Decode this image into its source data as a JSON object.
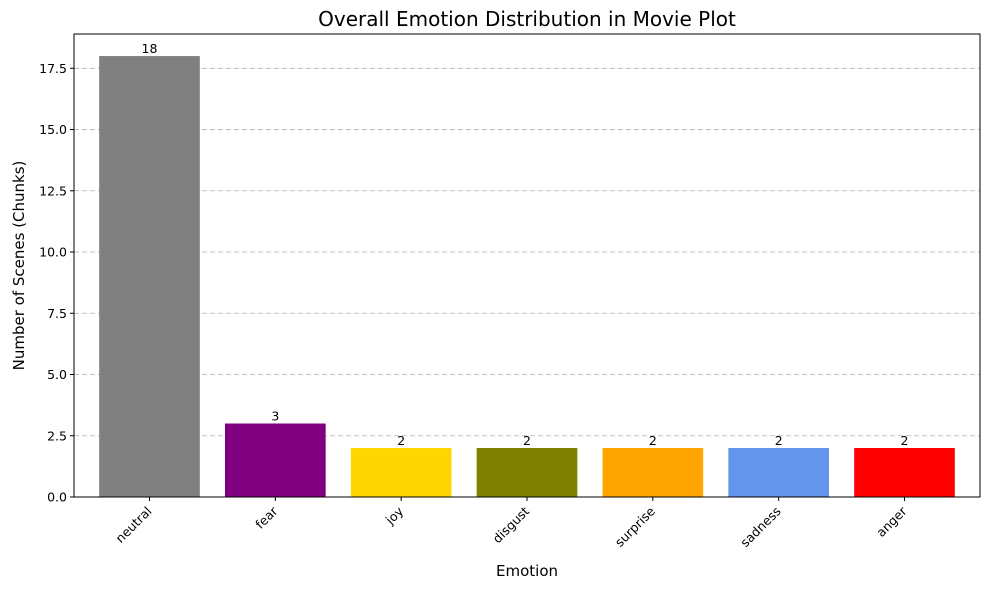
{
  "chart_data": {
    "type": "bar",
    "title": "Overall Emotion Distribution in Movie Plot",
    "xlabel": "Emotion",
    "ylabel": "Number of Scenes (Chunks)",
    "categories": [
      "neutral",
      "fear",
      "joy",
      "disgust",
      "surprise",
      "sadness",
      "anger"
    ],
    "values": [
      18,
      3,
      2,
      2,
      2,
      2,
      2
    ],
    "data_labels": [
      "18",
      "3",
      "2",
      "2",
      "2",
      "2",
      "2"
    ],
    "colors": [
      "#808080",
      "#800080",
      "#ffd700",
      "#808000",
      "#ffa500",
      "#6495ed",
      "#ff0000"
    ],
    "ylim": [
      0,
      18.9
    ],
    "yticks": [
      0,
      2.5,
      5,
      7.5,
      10,
      12.5,
      15,
      17.5
    ],
    "ytick_labels": [
      "0.0",
      "2.5",
      "5.0",
      "7.5",
      "10.0",
      "12.5",
      "15.0",
      "17.5"
    ],
    "grid": "y-dashed"
  }
}
